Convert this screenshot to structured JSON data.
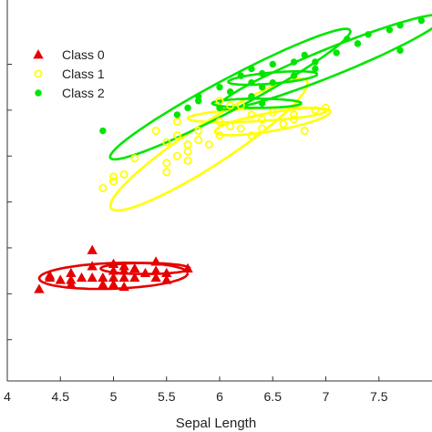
{
  "chart_data": {
    "type": "scatter",
    "title": "",
    "xlabel": "Sepal Length",
    "ylabel": "",
    "xlim": [
      4,
      8
    ],
    "ylim": [
      -1.9,
      6.4
    ],
    "xticks": [
      4,
      4.5,
      5,
      5.5,
      6,
      6.5,
      7,
      7.5
    ],
    "xtick_labels": [
      "4",
      "4.5",
      "5",
      "5.5",
      "6",
      "6.5",
      "7",
      "7.5"
    ],
    "yticks": [
      -1,
      0,
      1,
      2,
      3,
      4,
      5
    ],
    "grid": false,
    "legend_position": "top-left",
    "series": [
      {
        "name": "Class 0",
        "marker": "triangle",
        "color": "#e60000",
        "x": [
          4.3,
          4.4,
          4.4,
          4.5,
          4.6,
          4.6,
          4.7,
          4.8,
          4.8,
          4.9,
          4.9,
          5.0,
          5.0,
          5.0,
          5.1,
          5.1,
          5.1,
          5.2,
          5.2,
          5.3,
          5.4,
          5.4,
          5.4,
          5.5,
          5.5,
          5.7,
          4.8,
          5.0,
          4.6,
          5.1
        ],
        "y": [
          0.1,
          0.35,
          0.4,
          0.3,
          0.3,
          0.45,
          0.35,
          0.35,
          0.95,
          0.2,
          0.35,
          0.2,
          0.35,
          0.5,
          0.15,
          0.35,
          0.5,
          0.35,
          0.55,
          0.45,
          0.35,
          0.5,
          0.7,
          0.3,
          0.45,
          0.55,
          0.6,
          0.65,
          0.2,
          0.6
        ]
      },
      {
        "name": "Class 1",
        "marker": "circle-open",
        "color": "#ffff00",
        "x": [
          4.9,
          5.0,
          5.0,
          5.2,
          5.5,
          5.5,
          5.5,
          5.6,
          5.6,
          5.6,
          5.7,
          5.7,
          5.7,
          5.8,
          5.8,
          5.9,
          6.0,
          6.0,
          6.0,
          6.1,
          6.1,
          6.2,
          6.2,
          6.3,
          6.3,
          6.4,
          6.4,
          6.5,
          6.6,
          6.7,
          6.7,
          6.8,
          6.9,
          7.0,
          5.4,
          5.1
        ],
        "y": [
          2.3,
          2.45,
          2.55,
          2.95,
          2.65,
          2.85,
          3.3,
          3.0,
          3.45,
          3.75,
          2.9,
          3.1,
          3.25,
          3.35,
          3.55,
          3.25,
          3.45,
          3.75,
          4.2,
          3.65,
          4.1,
          3.6,
          4.1,
          3.45,
          3.9,
          3.6,
          3.8,
          3.95,
          3.7,
          3.8,
          3.9,
          3.55,
          4.0,
          4.05,
          3.55,
          2.6
        ]
      },
      {
        "name": "Class 2",
        "marker": "circle-filled",
        "color": "#00e600",
        "x": [
          4.9,
          5.6,
          5.7,
          5.8,
          5.8,
          6.0,
          6.0,
          6.1,
          6.2,
          6.3,
          6.3,
          6.4,
          6.4,
          6.5,
          6.5,
          6.7,
          6.7,
          6.8,
          6.9,
          7.1,
          7.2,
          7.3,
          7.4,
          7.6,
          7.7,
          7.7,
          7.9,
          6.3,
          6.4,
          6.9
        ],
        "y": [
          3.55,
          3.9,
          4.05,
          4.2,
          4.3,
          4.05,
          4.5,
          4.4,
          4.75,
          4.6,
          4.9,
          4.5,
          4.8,
          4.6,
          5.0,
          4.75,
          5.05,
          5.2,
          4.9,
          5.25,
          5.55,
          5.45,
          5.65,
          5.75,
          5.85,
          5.3,
          5.95,
          4.3,
          4.15,
          5.05
        ]
      }
    ],
    "ellipses": [
      {
        "series": "Class 0",
        "cx": 5.0,
        "cy": 0.39,
        "rx": 0.7,
        "ry": 0.28,
        "angle_deg": 2
      },
      {
        "series": "Class 0",
        "cx": 5.3,
        "cy": 0.55,
        "rx": 0.42,
        "ry": 0.12,
        "angle_deg": 0
      },
      {
        "series": "Class 1",
        "cx": 5.9,
        "cy": 3.25,
        "rx": 1.1,
        "ry": 0.45,
        "angle_deg": 33
      },
      {
        "series": "Class 1",
        "cx": 6.5,
        "cy": 3.75,
        "rx": 0.55,
        "ry": 0.2,
        "angle_deg": 10
      },
      {
        "series": "Class 1",
        "cx": 6.35,
        "cy": 3.9,
        "rx": 0.65,
        "ry": 0.14,
        "angle_deg": 3
      },
      {
        "series": "Class 2",
        "cx": 6.1,
        "cy": 4.35,
        "rx": 1.28,
        "ry": 0.34,
        "angle_deg": 28
      },
      {
        "series": "Class 2",
        "cx": 7.05,
        "cy": 5.05,
        "rx": 1.15,
        "ry": 0.3,
        "angle_deg": 22
      },
      {
        "series": "Class 2",
        "cx": 6.35,
        "cy": 4.15,
        "rx": 0.42,
        "ry": 0.1,
        "angle_deg": 0
      },
      {
        "series": "Class 2",
        "cx": 6.5,
        "cy": 4.7,
        "rx": 0.42,
        "ry": 0.12,
        "angle_deg": 5
      }
    ]
  }
}
